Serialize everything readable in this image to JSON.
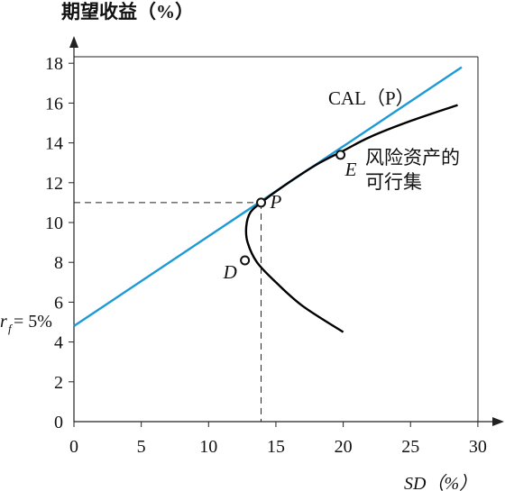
{
  "chart_data": {
    "type": "line",
    "ylabel": "期望收益（%）",
    "xlabel": "SD（%）",
    "xlim": [
      0,
      30
    ],
    "ylim": [
      0,
      18
    ],
    "x_ticks": [
      0,
      5,
      10,
      15,
      20,
      25,
      30
    ],
    "y_ticks": [
      0,
      2,
      4,
      6,
      8,
      10,
      12,
      14,
      16,
      18
    ],
    "series": [
      {
        "name": "CAL（P）",
        "kind": "line",
        "color": "#1d9ad6",
        "x": [
          0,
          28.8
        ],
        "y": [
          4.8,
          17.8
        ]
      },
      {
        "name": "风险资产的可行集",
        "kind": "curve",
        "color": "#000000",
        "points": [
          [
            20.0,
            4.5
          ],
          [
            17.0,
            5.8
          ],
          [
            15.0,
            7.0
          ],
          [
            13.6,
            8.0
          ],
          [
            12.9,
            9.0
          ],
          [
            12.8,
            9.8
          ],
          [
            13.1,
            10.5
          ],
          [
            13.9,
            11.0
          ],
          [
            15.5,
            11.8
          ],
          [
            18.0,
            12.9
          ],
          [
            20.0,
            13.6
          ],
          [
            22.0,
            14.3
          ],
          [
            25.0,
            15.1
          ],
          [
            28.5,
            15.9
          ]
        ]
      }
    ],
    "points": [
      {
        "label": "P",
        "x": 13.9,
        "y": 11.0
      },
      {
        "label": "D",
        "x": 12.7,
        "y": 8.1
      },
      {
        "label": "E",
        "x": 19.8,
        "y": 13.4
      }
    ],
    "reference_lines": [
      {
        "x": 13.9,
        "y": 11.0,
        "style": "dashed"
      }
    ],
    "annotations": {
      "cal_label": "CAL（P）",
      "frontier_label_line1": "风险资产的",
      "frontier_label_line2": "可行集",
      "rf_label": "r",
      "rf_subscript": "f",
      "rf_value": "= 5%"
    },
    "grid": false
  }
}
